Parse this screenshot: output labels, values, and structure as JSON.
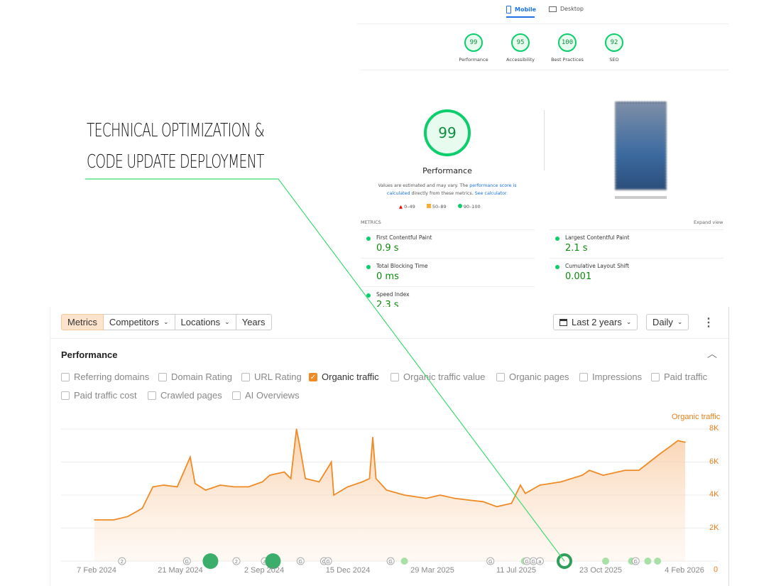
{
  "annotation": {
    "line1": "TECHNICAL OPTIMIZATION &",
    "line2": "CODE UPDATE DEPLOYMENT"
  },
  "lighthouse": {
    "tabs": [
      {
        "label": "Mobile",
        "active": true,
        "icon": "mobile-icon"
      },
      {
        "label": "Desktop",
        "active": false,
        "icon": "desktop-icon"
      }
    ],
    "scores": [
      {
        "value": "99",
        "label": "Performance"
      },
      {
        "value": "95",
        "label": "Accessibility"
      },
      {
        "value": "100",
        "label": "Best Practices"
      },
      {
        "value": "92",
        "label": "SEO"
      }
    ],
    "main_score": "99",
    "main_label": "Performance",
    "note_text": "Values are estimated and may vary. The ",
    "note_link1": "performance score is calculated",
    "note_mid": " directly from these metrics. ",
    "note_link2": "See calculator.",
    "legend": [
      {
        "range": "0–49",
        "color": "#e00"
      },
      {
        "range": "50–89",
        "color": "#fa3"
      },
      {
        "range": "90–100",
        "color": "#0cce6b"
      }
    ],
    "metrics_label": "METRICS",
    "expand": "Expand view",
    "metrics": [
      {
        "name": "First Contentful Paint",
        "value": "0.9 s"
      },
      {
        "name": "Largest Contentful Paint",
        "value": "2.1 s"
      },
      {
        "name": "Total Blocking Time",
        "value": "0 ms"
      },
      {
        "name": "Cumulative Layout Shift",
        "value": "0.001"
      },
      {
        "name": "Speed Index",
        "value": "2.3 s"
      }
    ]
  },
  "toolbar": {
    "tabs": [
      "Metrics",
      "Competitors",
      "Locations",
      "Years"
    ],
    "range": "Last 2 years",
    "interval": "Daily"
  },
  "section": {
    "title": "Performance",
    "checkboxes": [
      {
        "label": "Referring domains",
        "checked": false
      },
      {
        "label": "Domain Rating",
        "checked": false
      },
      {
        "label": "URL Rating",
        "checked": false
      },
      {
        "label": "Organic traffic",
        "checked": true
      },
      {
        "label": "Organic traffic value",
        "checked": false
      },
      {
        "label": "Organic pages",
        "checked": false
      },
      {
        "label": "Impressions",
        "checked": false
      },
      {
        "label": "Paid traffic",
        "checked": false
      },
      {
        "label": "Paid traffic cost",
        "checked": false
      },
      {
        "label": "Crawled pages",
        "checked": false
      },
      {
        "label": "AI Overviews",
        "checked": false
      }
    ]
  },
  "chart_data": {
    "type": "area",
    "series_name": "Organic traffic",
    "color": "#f08a24",
    "yticks": [
      "8K",
      "6K",
      "4K",
      "2K",
      "0"
    ],
    "ylim": [
      0,
      8000
    ],
    "xticks": [
      "7 Feb 2024",
      "21 May 2024",
      "2 Sep 2024",
      "15 Dec 2024",
      "29 Mar 2025",
      "11 Jul 2025",
      "23 Oct 2025",
      "4 Feb 2026"
    ],
    "xlim": [
      "2024-02-07",
      "2026-02-04"
    ],
    "points": [
      [
        "2024-02-07",
        2500
      ],
      [
        "2024-03-02",
        2500
      ],
      [
        "2024-03-19",
        2700
      ],
      [
        "2024-04-06",
        3200
      ],
      [
        "2024-04-19",
        4500
      ],
      [
        "2024-05-02",
        4600
      ],
      [
        "2024-05-19",
        4500
      ],
      [
        "2024-06-04",
        6300
      ],
      [
        "2024-06-10",
        4700
      ],
      [
        "2024-06-23",
        4300
      ],
      [
        "2024-07-11",
        4600
      ],
      [
        "2024-07-28",
        4500
      ],
      [
        "2024-08-15",
        4500
      ],
      [
        "2024-09-01",
        4800
      ],
      [
        "2024-09-10",
        5200
      ],
      [
        "2024-09-28",
        5400
      ],
      [
        "2024-10-06",
        5000
      ],
      [
        "2024-10-13",
        8000
      ],
      [
        "2024-10-17",
        7000
      ],
      [
        "2024-10-24",
        5000
      ],
      [
        "2024-11-10",
        4800
      ],
      [
        "2024-11-25",
        6000
      ],
      [
        "2024-11-28",
        4000
      ],
      [
        "2024-12-15",
        4500
      ],
      [
        "2025-01-02",
        4800
      ],
      [
        "2025-01-11",
        5000
      ],
      [
        "2025-01-15",
        7500
      ],
      [
        "2025-01-19",
        5000
      ],
      [
        "2025-02-01",
        4300
      ],
      [
        "2025-02-23",
        4000
      ],
      [
        "2025-03-22",
        3800
      ],
      [
        "2025-04-08",
        4000
      ],
      [
        "2025-04-26",
        3800
      ],
      [
        "2025-05-13",
        3700
      ],
      [
        "2025-05-31",
        3600
      ],
      [
        "2025-06-17",
        3300
      ],
      [
        "2025-07-05",
        3500
      ],
      [
        "2025-07-16",
        4600
      ],
      [
        "2025-07-22",
        4100
      ],
      [
        "2025-08-09",
        4600
      ],
      [
        "2025-09-04",
        4800
      ],
      [
        "2025-09-30",
        5200
      ],
      [
        "2025-10-09",
        5500
      ],
      [
        "2025-10-26",
        5200
      ],
      [
        "2025-11-22",
        5500
      ],
      [
        "2025-12-09",
        5500
      ],
      [
        "2025-12-22",
        6000
      ],
      [
        "2026-01-04",
        6500
      ],
      [
        "2026-01-18",
        7000
      ],
      [
        "2026-01-26",
        7300
      ],
      [
        "2026-02-04",
        7200
      ]
    ],
    "annotations": [
      {
        "date": "2024-03-12",
        "label": "2"
      },
      {
        "date": "2024-05-31",
        "label": "G"
      },
      {
        "date": "2024-06-29",
        "label": ""
      },
      {
        "date": "2024-07-31",
        "label": "2"
      },
      {
        "date": "2024-09-04",
        "label": "a"
      },
      {
        "date": "2024-09-14",
        "label": ""
      },
      {
        "date": "2024-10-18",
        "label": "G"
      },
      {
        "date": "2024-11-16",
        "label": "G"
      },
      {
        "date": "2024-11-21",
        "label": "G"
      },
      {
        "date": "2025-02-06",
        "label": "G"
      },
      {
        "date": "2025-02-23",
        "label": ""
      },
      {
        "date": "2025-06-09",
        "label": "G"
      },
      {
        "date": "2025-07-21",
        "label": ""
      },
      {
        "date": "2025-07-24",
        "label": "G"
      },
      {
        "date": "2025-08-01",
        "label": "G"
      },
      {
        "date": "2025-08-09",
        "label": "a"
      },
      {
        "date": "2025-10-29",
        "label": ""
      },
      {
        "date": "2025-11-30",
        "label": ""
      },
      {
        "date": "2025-12-05",
        "label": "G"
      },
      {
        "date": "2025-12-20",
        "label": ""
      },
      {
        "date": "2026-01-01",
        "label": ""
      }
    ]
  }
}
